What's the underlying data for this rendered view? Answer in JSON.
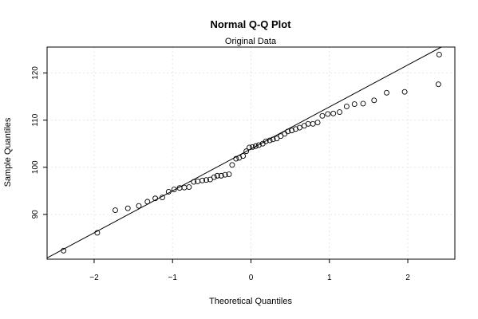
{
  "chart_data": {
    "type": "scatter",
    "title": "Normal Q-Q Plot",
    "subtitle": "Original Data",
    "xlabel": "Theoretical Quantiles",
    "ylabel": "Sample Quantiles",
    "xlim": [
      -2.6,
      2.6
    ],
    "ylim": [
      80.5,
      125.5
    ],
    "xticks": [
      -2,
      -1,
      0,
      1,
      2
    ],
    "xtick_labels": [
      "−2",
      "−1",
      "0",
      "1",
      "2"
    ],
    "yticks": [
      90,
      100,
      110,
      120
    ],
    "ytick_labels": [
      "90",
      "100",
      "110",
      "120"
    ],
    "grid": true,
    "reference_line": {
      "intercept": 103.9,
      "slope": 8.9
    },
    "points": [
      [
        -2.39,
        82.3
      ],
      [
        -1.96,
        86.1
      ],
      [
        -1.73,
        90.9
      ],
      [
        -1.57,
        91.3
      ],
      [
        -1.43,
        91.8
      ],
      [
        -1.32,
        92.7
      ],
      [
        -1.22,
        93.4
      ],
      [
        -1.13,
        93.6
      ],
      [
        -1.05,
        94.8
      ],
      [
        -0.98,
        95.3
      ],
      [
        -0.91,
        95.6
      ],
      [
        -0.85,
        95.7
      ],
      [
        -0.79,
        95.8
      ],
      [
        -0.73,
        96.9
      ],
      [
        -0.68,
        97.0
      ],
      [
        -0.62,
        97.2
      ],
      [
        -0.57,
        97.3
      ],
      [
        -0.52,
        97.4
      ],
      [
        -0.47,
        97.9
      ],
      [
        -0.43,
        98.2
      ],
      [
        -0.38,
        98.2
      ],
      [
        -0.33,
        98.4
      ],
      [
        -0.28,
        98.5
      ],
      [
        -0.24,
        100.5
      ],
      [
        -0.19,
        101.8
      ],
      [
        -0.15,
        102.0
      ],
      [
        -0.1,
        102.4
      ],
      [
        -0.06,
        103.4
      ],
      [
        -0.02,
        104.2
      ],
      [
        0.02,
        104.3
      ],
      [
        0.06,
        104.5
      ],
      [
        0.1,
        104.7
      ],
      [
        0.15,
        105.0
      ],
      [
        0.19,
        105.5
      ],
      [
        0.24,
        105.7
      ],
      [
        0.28,
        105.9
      ],
      [
        0.33,
        106.1
      ],
      [
        0.38,
        106.6
      ],
      [
        0.43,
        107.1
      ],
      [
        0.47,
        107.6
      ],
      [
        0.52,
        107.8
      ],
      [
        0.57,
        108.1
      ],
      [
        0.62,
        108.4
      ],
      [
        0.68,
        108.8
      ],
      [
        0.73,
        109.2
      ],
      [
        0.79,
        109.2
      ],
      [
        0.85,
        109.5
      ],
      [
        0.91,
        110.9
      ],
      [
        0.98,
        111.3
      ],
      [
        1.05,
        111.4
      ],
      [
        1.13,
        111.7
      ],
      [
        1.22,
        112.9
      ],
      [
        1.32,
        113.4
      ],
      [
        1.43,
        113.5
      ],
      [
        1.57,
        114.2
      ],
      [
        1.73,
        115.8
      ],
      [
        1.96,
        116.0
      ],
      [
        2.39,
        117.6
      ],
      [
        2.4,
        123.9
      ]
    ]
  }
}
